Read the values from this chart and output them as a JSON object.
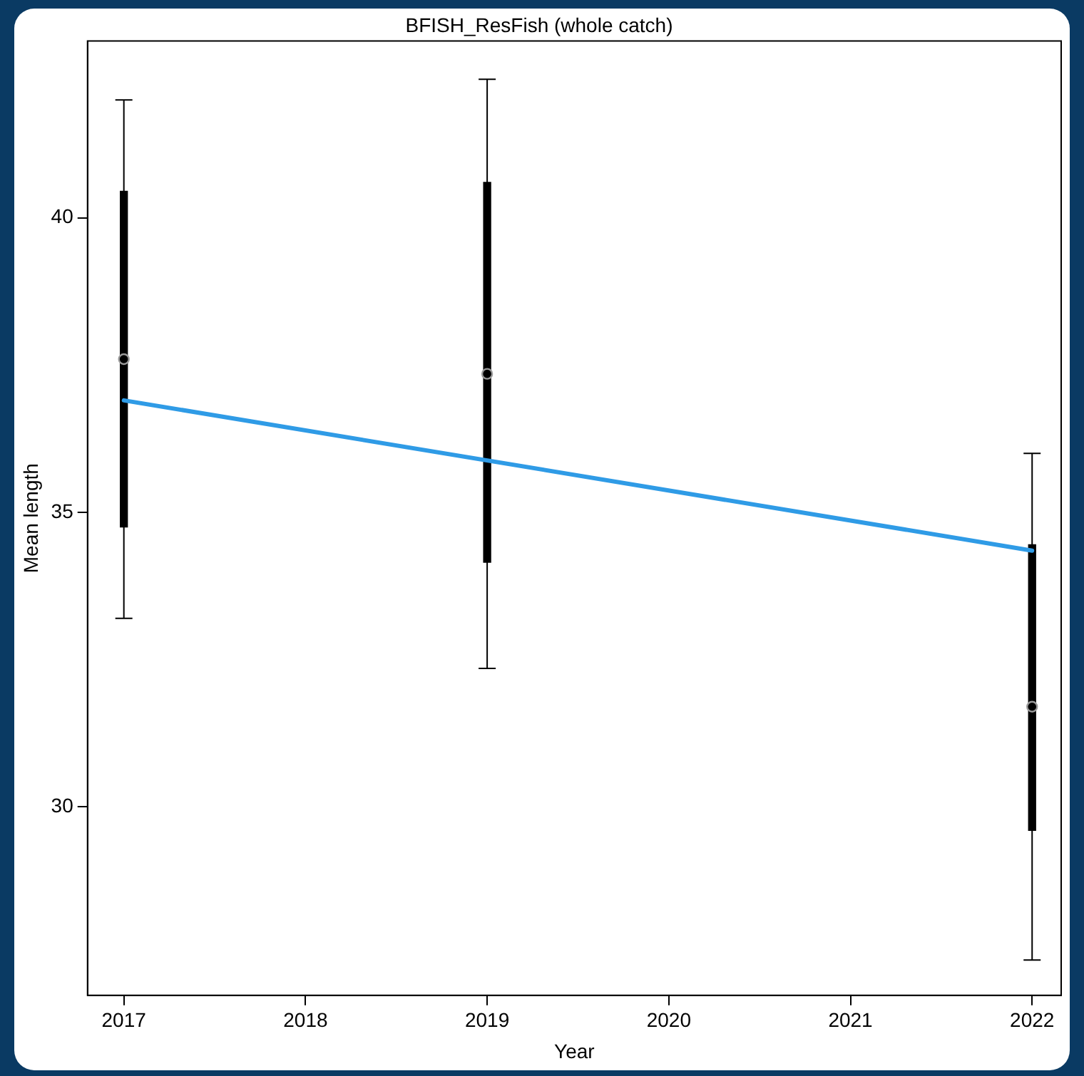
{
  "chart_data": {
    "type": "scatter",
    "title": "BFISH_ResFish (whole catch)",
    "xlabel": "Year",
    "ylabel": "Mean length",
    "xlim": [
      2016.8,
      2022.16
    ],
    "xticks": [
      2017,
      2018,
      2019,
      2020,
      2021,
      2022
    ],
    "ylim": [
      26.8,
      43.0
    ],
    "yticks": [
      30,
      35,
      40
    ],
    "grid": false,
    "legend": false,
    "series": [
      {
        "type": "bar",
        "color": "#000000",
        "x": [
          2017,
          2019,
          2022
        ],
        "base": [
          34.75,
          34.15,
          29.6
        ],
        "values": [
          5.7,
          6.45,
          4.85
        ]
      },
      {
        "type": "scatter",
        "color": "#000000",
        "marker": "circle",
        "x": [
          2017,
          2019,
          2022
        ],
        "values": [
          37.6,
          37.35,
          31.7
        ],
        "errors": [
          [
            33.2,
            42.0
          ],
          [
            32.35,
            42.35
          ],
          [
            27.4,
            36.0
          ]
        ]
      },
      {
        "type": "line",
        "color": "#2f9be6",
        "marker": "none",
        "x": [
          2017,
          2022
        ],
        "values": [
          36.9,
          34.35
        ]
      }
    ]
  }
}
